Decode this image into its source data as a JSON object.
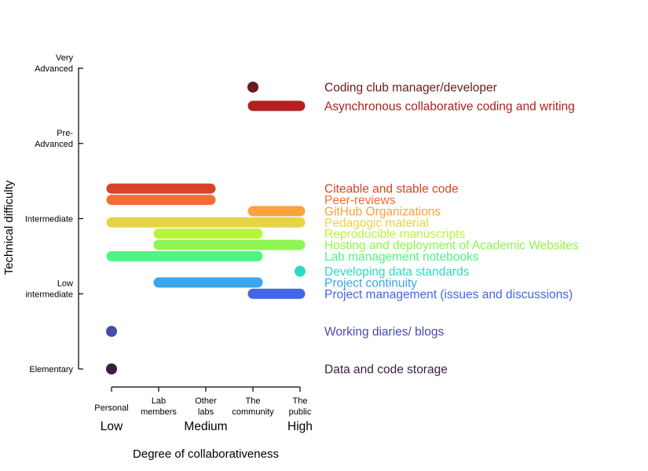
{
  "chart_data": {
    "type": "range-dot",
    "xlabel": "Degree of collaborativeness",
    "ylabel": "Technical difficulty",
    "x_ticks": [
      {
        "x": 1,
        "lines": [
          "Personal"
        ]
      },
      {
        "x": 2,
        "lines": [
          "Lab",
          "members"
        ]
      },
      {
        "x": 3,
        "lines": [
          "Other",
          "labs"
        ]
      },
      {
        "x": 4,
        "lines": [
          "The",
          "community"
        ]
      },
      {
        "x": 5,
        "lines": [
          "The",
          "public"
        ]
      }
    ],
    "x_levels": [
      {
        "x": 1,
        "label": "Low"
      },
      {
        "x": 3,
        "label": "Medium"
      },
      {
        "x": 5,
        "label": "High"
      }
    ],
    "y_ticks": [
      {
        "y": 1,
        "lines": [
          "Elementary"
        ]
      },
      {
        "y": 2,
        "lines": [
          "Low",
          "intermediate"
        ]
      },
      {
        "y": 3,
        "lines": [
          "Intermediate"
        ]
      },
      {
        "y": 4,
        "lines": [
          "Pre-",
          "Advanced"
        ]
      },
      {
        "y": 5,
        "lines": [
          "Very",
          "Advanced"
        ]
      }
    ],
    "xlim": [
      1,
      5
    ],
    "ylim": [
      1,
      5
    ],
    "items": [
      {
        "label": "Coding club manager/developer",
        "x_start": 4,
        "x_end": 4,
        "y": 4.75,
        "color": "#6b1a1f"
      },
      {
        "label": "Asynchronous collaborative coding and writing",
        "x_start": 4,
        "x_end": 5,
        "y": 4.5,
        "color": "#b0211f"
      },
      {
        "label": "Citeable and stable code",
        "x_start": 1,
        "x_end": 3.1,
        "y": 3.4,
        "color": "#d94327"
      },
      {
        "label": "Peer-reviews",
        "x_start": 1,
        "x_end": 3.1,
        "y": 3.25,
        "color": "#f46d32"
      },
      {
        "label": "GitHub Organizations",
        "x_start": 4,
        "x_end": 5,
        "y": 3.1,
        "color": "#f9a23e"
      },
      {
        "label": "Pedagogic material",
        "x_start": 1,
        "x_end": 5,
        "y": 2.95,
        "color": "#e6d445"
      },
      {
        "label": "Reproducible manuscripts",
        "x_start": 2,
        "x_end": 4.1,
        "y": 2.8,
        "color": "#b8f43c"
      },
      {
        "label": "Hosting and deployment of Academic Websites",
        "x_start": 2,
        "x_end": 5,
        "y": 2.65,
        "color": "#8ef552"
      },
      {
        "label": "Lab management notebooks",
        "x_start": 1,
        "x_end": 4.1,
        "y": 2.5,
        "color": "#4ef484"
      },
      {
        "label": "Developing data standards",
        "x_start": 5,
        "x_end": 5,
        "y": 2.3,
        "color": "#2ed9c4"
      },
      {
        "label": "Project continuity",
        "x_start": 2,
        "x_end": 4.1,
        "y": 2.15,
        "color": "#3ba5ef"
      },
      {
        "label": "Project management (issues and discussions)",
        "x_start": 4,
        "x_end": 5,
        "y": 2.0,
        "color": "#4466e4"
      },
      {
        "label": "Working diaries/ blogs",
        "x_start": 1,
        "x_end": 1,
        "y": 1.5,
        "color": "#4a4aaa"
      },
      {
        "label": "Data and code storage",
        "x_start": 1,
        "x_end": 1,
        "y": 1.0,
        "color": "#3a1f42"
      }
    ]
  }
}
